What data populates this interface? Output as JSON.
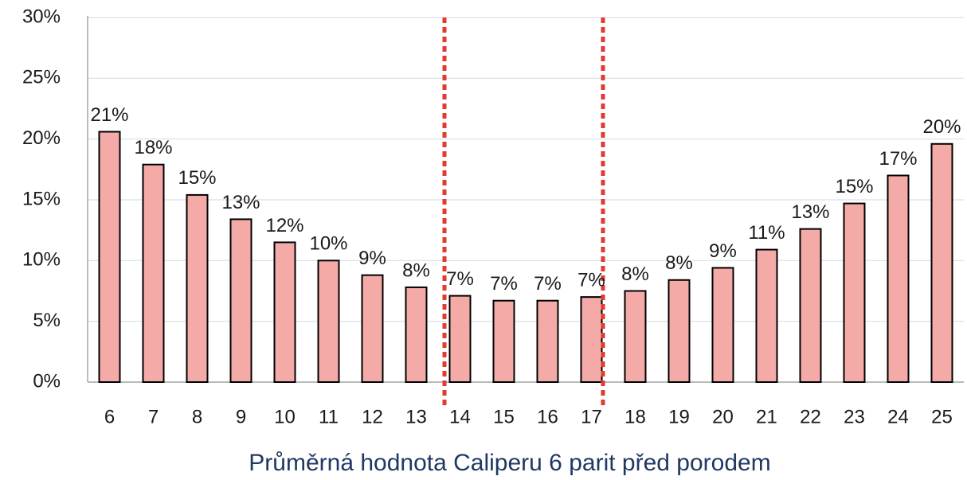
{
  "chart_data": {
    "type": "bar",
    "x_label": "Průměrná hodnota Caliperu 6 parit před porodem",
    "categories": [
      6,
      7,
      8,
      9,
      10,
      11,
      12,
      13,
      14,
      15,
      16,
      17,
      18,
      19,
      20,
      21,
      22,
      23,
      24,
      25
    ],
    "values": [
      20.6,
      17.9,
      15.4,
      13.4,
      11.5,
      10.0,
      8.8,
      7.8,
      7.1,
      6.7,
      6.7,
      7.0,
      7.5,
      8.4,
      9.4,
      10.9,
      12.6,
      14.7,
      17.0,
      19.6
    ],
    "value_labels": [
      "21%",
      "18%",
      "15%",
      "13%",
      "12%",
      "10%",
      "9%",
      "8%",
      "7%",
      "7%",
      "7%",
      "7%",
      "8%",
      "8%",
      "9%",
      "11%",
      "13%",
      "15%",
      "17%",
      "20%"
    ],
    "color": "#f4aba8",
    "ylim": [
      0,
      30
    ],
    "yticks": [
      {
        "value": 0,
        "label": "0%"
      },
      {
        "value": 5,
        "label": "5%"
      },
      {
        "value": 10,
        "label": "10%"
      },
      {
        "value": 15,
        "label": "15%"
      },
      {
        "value": 20,
        "label": "20%"
      },
      {
        "value": 25,
        "label": "25%"
      },
      {
        "value": 30,
        "label": "30%"
      }
    ],
    "grid": true
  }
}
